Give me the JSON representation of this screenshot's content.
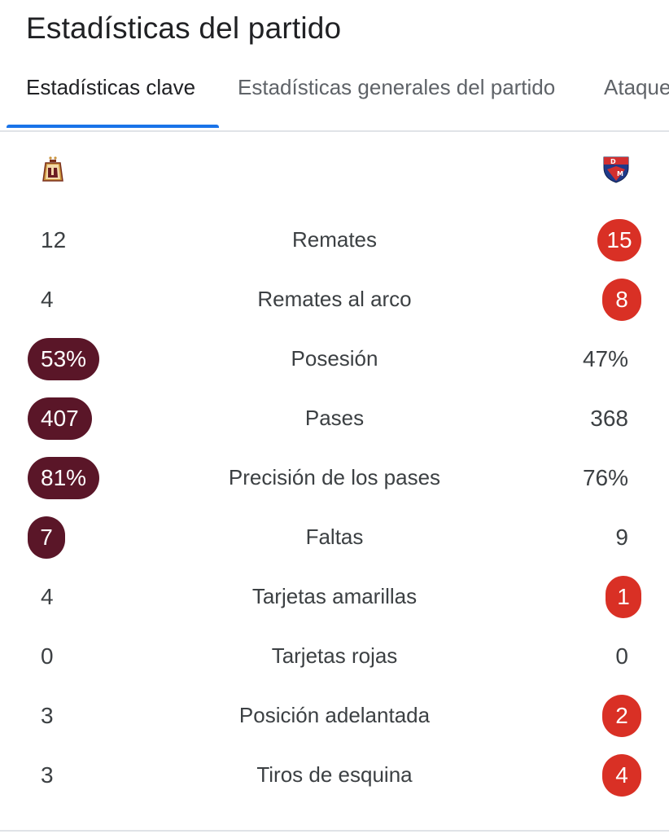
{
  "header": {
    "title": "Estadísticas del partido"
  },
  "tabs": [
    {
      "label": "Estadísticas clave",
      "active": true
    },
    {
      "label": "Estadísticas generales del partido",
      "active": false
    },
    {
      "label": "Ataque",
      "active": false
    }
  ],
  "teams": {
    "home": {
      "logo_icon": "tolima-crest-icon",
      "highlight_color": "#5a1628"
    },
    "away": {
      "logo_icon": "medellin-crest-icon",
      "highlight_color": "#d93025"
    }
  },
  "stats": [
    {
      "label": "Remates",
      "home": "12",
      "away": "15",
      "leader": "away"
    },
    {
      "label": "Remates al arco",
      "home": "4",
      "away": "8",
      "leader": "away"
    },
    {
      "label": "Posesión",
      "home": "53%",
      "away": "47%",
      "leader": "home"
    },
    {
      "label": "Pases",
      "home": "407",
      "away": "368",
      "leader": "home"
    },
    {
      "label": "Precisión de los pases",
      "home": "81%",
      "away": "76%",
      "leader": "home"
    },
    {
      "label": "Faltas",
      "home": "7",
      "away": "9",
      "leader": "home"
    },
    {
      "label": "Tarjetas amarillas",
      "home": "4",
      "away": "1",
      "leader": "away"
    },
    {
      "label": "Tarjetas rojas",
      "home": "0",
      "away": "0",
      "leader": "none"
    },
    {
      "label": "Posición adelantada",
      "home": "3",
      "away": "2",
      "leader": "away"
    },
    {
      "label": "Tiros de esquina",
      "home": "3",
      "away": "4",
      "leader": "away"
    }
  ]
}
